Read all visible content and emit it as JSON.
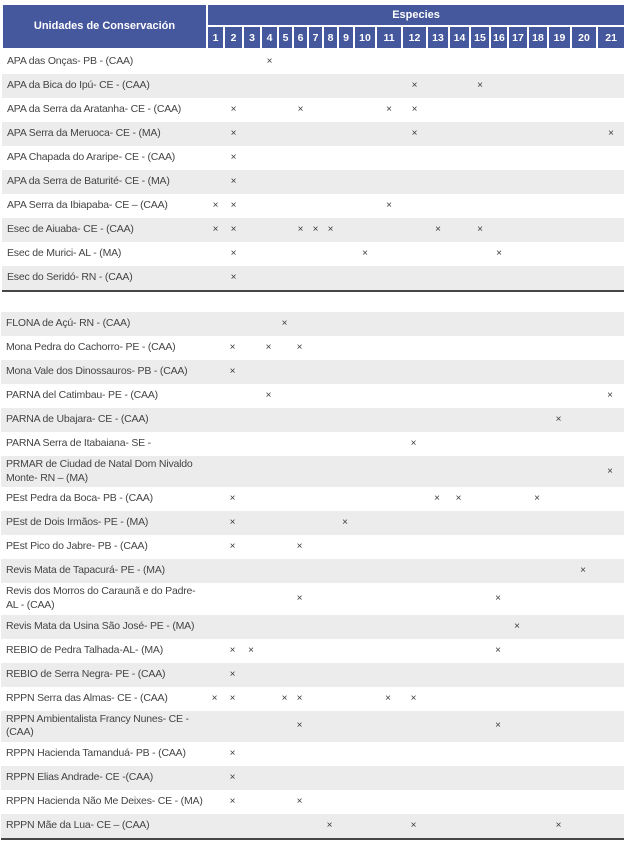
{
  "header": {
    "units_label": "Unidades de Conservación",
    "species_label": "Especies",
    "species_count": 21,
    "species_numbers": [
      "1",
      "2",
      "3",
      "4",
      "5",
      "6",
      "7",
      "8",
      "9",
      "10",
      "11",
      "12",
      "13",
      "14",
      "15",
      "16",
      "17",
      "18",
      "19",
      "20",
      "21"
    ]
  },
  "mark_symbol": "×",
  "colors": {
    "header_bg": "#45579D",
    "header_text": "#FFFFFF",
    "row_stripe": "#ECECEC",
    "row_text": "#444444",
    "mark_color": "#3B3B3B",
    "bottom_border": "#474747"
  },
  "tables": {
    "table1": {
      "rows": [
        {
          "name": "APA das Onças- PB - (CAA)",
          "marks": [
            4
          ],
          "shade": false
        },
        {
          "name": "APA da Bica do Ipú- CE - (CAA)",
          "marks": [
            12,
            15
          ],
          "shade": true
        },
        {
          "name": "APA da Serra da Aratanha- CE - (CAA)",
          "marks": [
            2,
            6,
            11,
            12
          ],
          "shade": false
        },
        {
          "name": "APA Serra da Meruoca- CE - (MA)",
          "marks": [
            2,
            12,
            21
          ],
          "shade": true
        },
        {
          "name": "APA Chapada do Araripe- CE - (CAA)",
          "marks": [
            2
          ],
          "shade": false
        },
        {
          "name": "APA da Serra de Baturité- CE - (MA)",
          "marks": [
            2
          ],
          "shade": true
        },
        {
          "name": "APA Serra da Ibiapaba- CE – (CAA)",
          "marks": [
            1,
            2,
            11
          ],
          "shade": false
        },
        {
          "name": "Esec de Aiuaba- CE - (CAA)",
          "marks": [
            1,
            2,
            6,
            7,
            8,
            13,
            15
          ],
          "shade": true
        },
        {
          "name": "Esec de Murici- AL - (MA)",
          "marks": [
            2,
            10,
            16
          ],
          "shade": false
        },
        {
          "name": "Esec do Seridó- RN - (CAA)",
          "marks": [
            2
          ],
          "shade": true
        }
      ]
    },
    "table2": {
      "rows": [
        {
          "name": "FLONA de Açú- RN - (CAA)",
          "marks": [
            5
          ],
          "shade": true
        },
        {
          "name": "Mona Pedra do Cachorro- PE - (CAA)",
          "marks": [
            2,
            4,
            6
          ],
          "shade": false
        },
        {
          "name": "Mona Vale dos Dinossauros- PB - (CAA)",
          "marks": [
            2
          ],
          "shade": true
        },
        {
          "name": "PARNA del Catimbau- PE - (CAA)",
          "marks": [
            4,
            21
          ],
          "shade": false
        },
        {
          "name": "PARNA de Ubajara- CE - (CAA)",
          "marks": [
            19
          ],
          "shade": true
        },
        {
          "name": "PARNA Serra de Itabaiana- SE -",
          "marks": [
            12
          ],
          "shade": false
        },
        {
          "name": "PRMAR de Ciudad de Natal Dom Nivaldo Monte- RN – (MA)",
          "marks": [
            21
          ],
          "shade": true
        },
        {
          "name": "PEst Pedra da Boca- PB - (CAA)",
          "marks": [
            2,
            13,
            14,
            18
          ],
          "shade": false
        },
        {
          "name": "PEst de Dois Irmãos- PE - (MA)",
          "marks": [
            2,
            9
          ],
          "shade": true
        },
        {
          "name": "PEst Pico do Jabre- PB - (CAA)",
          "marks": [
            2,
            6
          ],
          "shade": false
        },
        {
          "name": "Revis Mata de Tapacurá- PE - (MA)",
          "marks": [
            20
          ],
          "shade": true
        },
        {
          "name": "Revis dos Morros do Caraunã e do Padre- AL - (CAA)",
          "marks": [
            6,
            16
          ],
          "shade": false
        },
        {
          "name": "Revis Mata da Usina São José- PE - (MA)",
          "marks": [
            17
          ],
          "shade": true
        },
        {
          "name": "REBIO de Pedra Talhada-AL- (MA)",
          "marks": [
            2,
            3,
            16
          ],
          "shade": false
        },
        {
          "name": "REBIO de Serra Negra- PE - (CAA)",
          "marks": [
            2
          ],
          "shade": true
        },
        {
          "name": "RPPN Serra das Almas- CE - (CAA)",
          "marks": [
            1,
            2,
            5,
            6,
            11,
            12
          ],
          "shade": false
        },
        {
          "name": "RPPN Ambientalista Francy Nunes- CE - (CAA)",
          "marks": [
            6,
            16
          ],
          "shade": true
        },
        {
          "name": "RPPN Hacienda Tamanduá- PB - (CAA)",
          "marks": [
            2
          ],
          "shade": false
        },
        {
          "name": "RPPN Elias Andrade- CE -(CAA)",
          "marks": [
            2
          ],
          "shade": true
        },
        {
          "name": "RPPN Hacienda Não Me Deixes- CE - (MA)",
          "marks": [
            2,
            6
          ],
          "shade": false
        },
        {
          "name": "RPPN Mãe da Lua- CE – (CAA)",
          "marks": [
            8,
            12,
            19
          ],
          "shade": true
        }
      ]
    }
  }
}
